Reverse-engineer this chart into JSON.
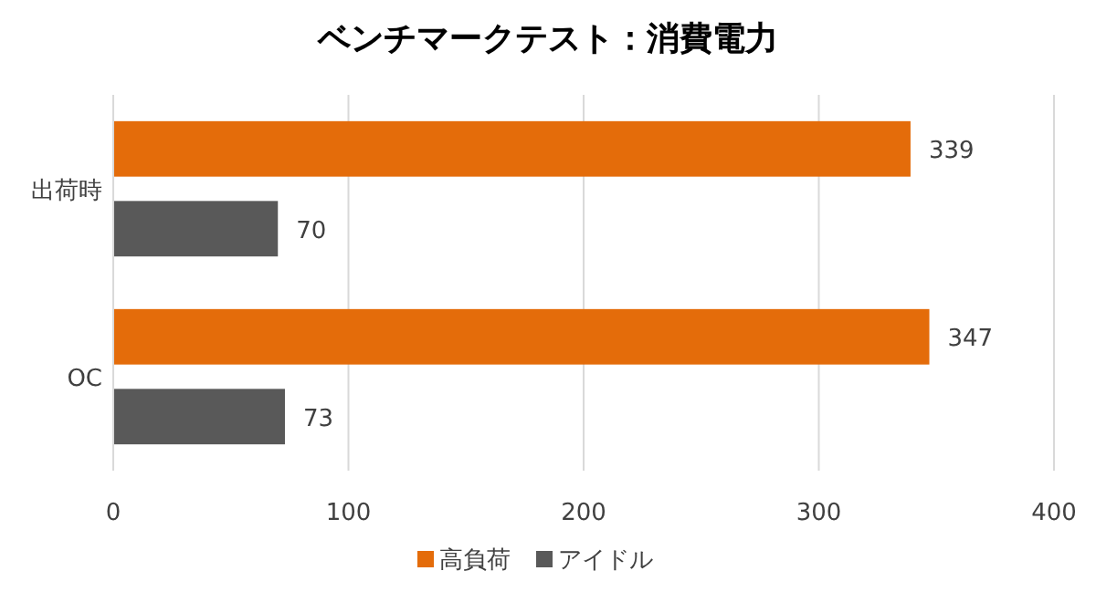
{
  "chart_data": {
    "type": "bar",
    "orientation": "horizontal",
    "title": "ベンチマークテスト：消費電力",
    "categories": [
      "出荷時",
      "OC"
    ],
    "series": [
      {
        "name": "高負荷",
        "color": "#e46c0a",
        "values": [
          339,
          347
        ]
      },
      {
        "name": "アイドル",
        "color": "#595959",
        "values": [
          70,
          73
        ]
      }
    ],
    "xlim": [
      0,
      400
    ],
    "xticks": [
      0,
      100,
      200,
      300,
      400
    ],
    "grid": "x",
    "legend": "bottom",
    "data_labels": true
  }
}
